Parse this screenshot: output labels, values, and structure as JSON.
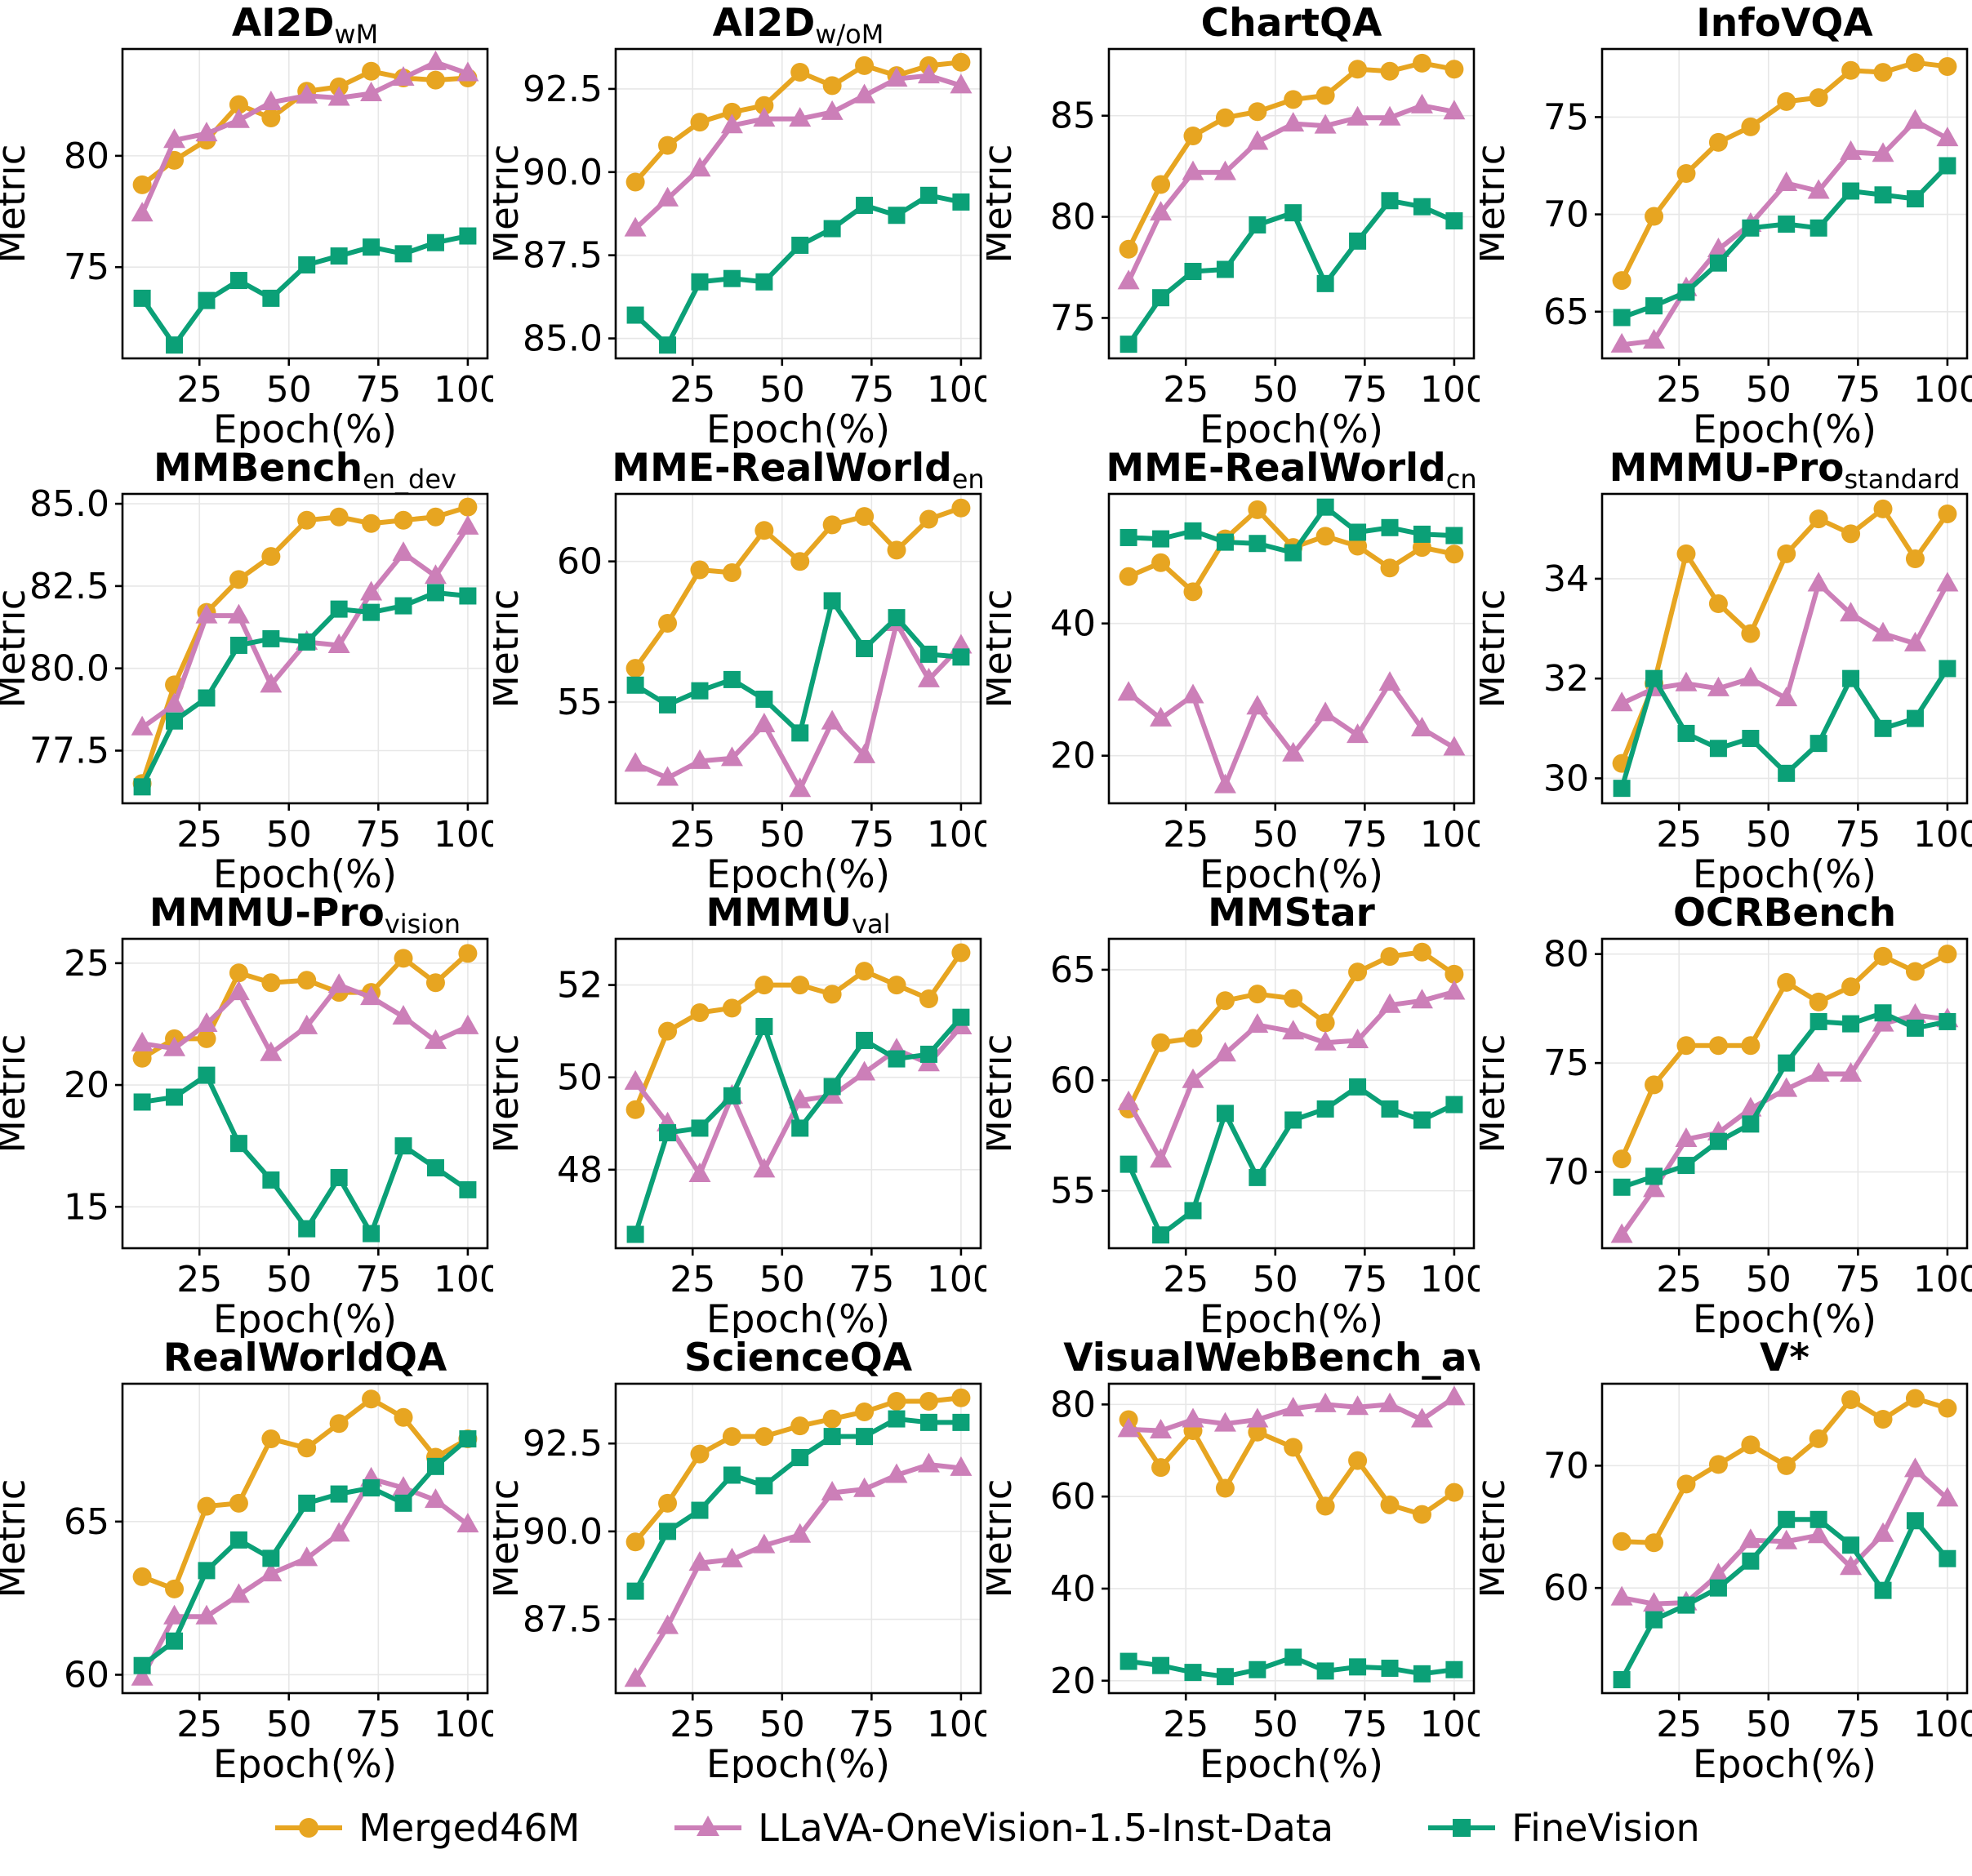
{
  "figure": {
    "background": "#ffffff",
    "grid_color": "#e7e7e7",
    "axis_color": "#000000"
  },
  "chart_data": {
    "type": "line",
    "x_label": "Epoch(%)",
    "y_label": "Metric",
    "x": [
      9,
      18,
      27,
      36,
      45,
      55,
      64,
      73,
      82,
      91,
      100
    ],
    "x_ticks": [
      25,
      50,
      75,
      100
    ],
    "xlim": [
      3.5,
      105.5
    ],
    "grid": true,
    "legend_position": "bottom",
    "series_meta": [
      {
        "name": "Merged46M",
        "color": "#E7A521",
        "marker": "circle"
      },
      {
        "name": "LLaVA-OneVision-1.5-Inst-Data",
        "color": "#CC7FB8",
        "marker": "triangle"
      },
      {
        "name": "FineVision",
        "color": "#0BA077",
        "marker": "square"
      }
    ],
    "subplots": [
      {
        "title": "AI2D",
        "title_sub": "wM",
        "ylim": [
          70.9,
          84.8
        ],
        "y_ticks": [
          "75",
          "80"
        ],
        "y_tick_values": [
          75,
          80
        ],
        "series": [
          [
            78.7,
            79.8,
            80.7,
            82.3,
            81.7,
            82.9,
            83.1,
            83.8,
            83.5,
            83.4,
            83.5
          ],
          [
            77.4,
            80.7,
            81.0,
            81.6,
            82.4,
            82.7,
            82.6,
            82.8,
            83.5,
            84.2,
            83.7
          ],
          [
            73.6,
            71.5,
            73.5,
            74.4,
            73.6,
            75.1,
            75.5,
            75.9,
            75.6,
            76.1,
            76.4
          ]
        ]
      },
      {
        "title": "AI2D",
        "title_sub": "w/oM",
        "ylim": [
          84.4,
          93.7
        ],
        "y_ticks": [
          "85.0",
          "87.5",
          "90.0",
          "92.5"
        ],
        "y_tick_values": [
          85.0,
          87.5,
          90.0,
          92.5
        ],
        "series": [
          [
            89.7,
            90.8,
            91.5,
            91.8,
            92.0,
            93.0,
            92.6,
            93.2,
            92.9,
            93.2,
            93.3
          ],
          [
            88.3,
            89.2,
            90.1,
            91.4,
            91.6,
            91.6,
            91.8,
            92.3,
            92.8,
            92.9,
            92.6
          ],
          [
            85.7,
            84.8,
            86.7,
            86.8,
            86.7,
            87.8,
            88.3,
            89.0,
            88.7,
            89.3,
            89.1
          ]
        ]
      },
      {
        "title": "ChartQA",
        "title_sub": "",
        "ylim": [
          73.0,
          88.3
        ],
        "y_ticks": [
          "75",
          "80",
          "85"
        ],
        "y_tick_values": [
          75,
          80,
          85
        ],
        "series": [
          [
            78.4,
            81.6,
            84.0,
            84.9,
            85.2,
            85.8,
            86.0,
            87.3,
            87.2,
            87.6,
            87.3
          ],
          [
            76.8,
            80.2,
            82.2,
            82.2,
            83.7,
            84.6,
            84.5,
            84.9,
            84.9,
            85.5,
            85.2
          ],
          [
            73.7,
            76.0,
            77.3,
            77.4,
            79.6,
            80.2,
            76.7,
            78.8,
            80.8,
            80.5,
            79.8
          ]
        ]
      },
      {
        "title": "InfoVQA",
        "title_sub": "",
        "ylim": [
          62.6,
          78.5
        ],
        "y_ticks": [
          "65",
          "70",
          "75"
        ],
        "y_tick_values": [
          65,
          70,
          75
        ],
        "series": [
          [
            66.6,
            69.9,
            72.1,
            73.7,
            74.5,
            75.8,
            76.0,
            77.4,
            77.3,
            77.8,
            77.6
          ],
          [
            63.3,
            63.5,
            66.2,
            68.2,
            69.5,
            71.6,
            71.2,
            73.2,
            73.1,
            74.8,
            73.9
          ],
          [
            64.7,
            65.3,
            66.0,
            67.5,
            69.3,
            69.5,
            69.3,
            71.2,
            71.0,
            70.8,
            72.5
          ]
        ]
      },
      {
        "title": "MMBench",
        "title_sub": "en_dev",
        "ylim": [
          75.9,
          85.3
        ],
        "y_ticks": [
          "77.5",
          "80.0",
          "82.5",
          "85.0"
        ],
        "y_tick_values": [
          77.5,
          80.0,
          82.5,
          85.0
        ],
        "series": [
          [
            76.5,
            79.5,
            81.7,
            82.7,
            83.4,
            84.5,
            84.6,
            84.4,
            84.5,
            84.6,
            84.9
          ],
          [
            78.2,
            78.9,
            81.6,
            81.6,
            79.5,
            80.8,
            80.7,
            82.3,
            83.5,
            82.8,
            84.3
          ],
          [
            76.4,
            78.4,
            79.1,
            80.7,
            80.9,
            80.8,
            81.8,
            81.7,
            81.9,
            82.3,
            82.2
          ]
        ]
      },
      {
        "title": "MME-RealWorld",
        "title_sub": "en",
        "ylim": [
          51.4,
          62.4
        ],
        "y_ticks": [
          "55",
          "60"
        ],
        "y_tick_values": [
          55,
          60
        ],
        "series": [
          [
            56.2,
            57.8,
            59.7,
            59.6,
            61.1,
            60.0,
            61.3,
            61.6,
            60.4,
            61.5,
            61.9
          ],
          [
            52.8,
            52.3,
            52.9,
            53.0,
            54.2,
            51.9,
            54.3,
            53.1,
            57.8,
            55.8,
            57.0
          ],
          [
            55.6,
            54.9,
            55.4,
            55.8,
            55.1,
            53.9,
            58.6,
            56.9,
            58.0,
            56.7,
            56.6
          ]
        ]
      },
      {
        "title": "MME-RealWorld",
        "title_sub": "cn",
        "ylim": [
          12.8,
          59.6
        ],
        "y_ticks": [
          "20",
          "40"
        ],
        "y_tick_values": [
          20,
          40
        ],
        "series": [
          [
            47.1,
            49.2,
            44.8,
            52.8,
            57.2,
            51.5,
            53.2,
            51.7,
            48.4,
            51.5,
            50.5
          ],
          [
            29.5,
            25.6,
            29.1,
            15.5,
            27.4,
            20.3,
            26.4,
            23.1,
            31.0,
            24.1,
            21.2
          ],
          [
            53.0,
            52.8,
            54.0,
            52.3,
            52.1,
            50.7,
            57.6,
            53.8,
            54.5,
            53.5,
            53.3
          ]
        ]
      },
      {
        "title": "MMMU-Pro",
        "title_sub": "standard",
        "ylim": [
          29.5,
          35.7
        ],
        "y_ticks": [
          "30",
          "32",
          "34"
        ],
        "y_tick_values": [
          30,
          32,
          34
        ],
        "series": [
          [
            30.3,
            31.9,
            34.5,
            33.5,
            32.9,
            34.5,
            35.2,
            34.9,
            35.4,
            34.4,
            35.3
          ],
          [
            31.5,
            31.8,
            31.9,
            31.8,
            32.0,
            31.6,
            33.9,
            33.3,
            32.9,
            32.7,
            33.9
          ],
          [
            29.8,
            32.0,
            30.9,
            30.6,
            30.8,
            30.1,
            30.7,
            32.0,
            31.0,
            31.2,
            32.2
          ]
        ]
      },
      {
        "title": "MMMU-Pro",
        "title_sub": "vision",
        "ylim": [
          13.3,
          26.0
        ],
        "y_ticks": [
          "15",
          "20",
          "25"
        ],
        "y_tick_values": [
          15,
          20,
          25
        ],
        "series": [
          [
            21.1,
            21.9,
            21.9,
            24.6,
            24.2,
            24.3,
            23.8,
            23.8,
            25.2,
            24.2,
            25.4
          ],
          [
            21.7,
            21.5,
            22.5,
            23.8,
            21.3,
            22.4,
            24.1,
            23.6,
            22.8,
            21.8,
            22.4
          ],
          [
            19.3,
            19.5,
            20.4,
            17.6,
            16.1,
            14.1,
            16.2,
            13.9,
            17.5,
            16.6,
            15.7
          ]
        ]
      },
      {
        "title": "MMMU",
        "title_sub": "val",
        "ylim": [
          46.3,
          53.0
        ],
        "y_ticks": [
          "48",
          "50",
          "52"
        ],
        "y_tick_values": [
          48,
          50,
          52
        ],
        "series": [
          [
            49.3,
            51.0,
            51.4,
            51.5,
            52.0,
            52.0,
            51.8,
            52.3,
            52.0,
            51.7,
            52.7
          ],
          [
            49.9,
            49.0,
            47.9,
            49.6,
            48.0,
            49.5,
            49.6,
            50.1,
            50.6,
            50.3,
            51.1
          ],
          [
            46.6,
            48.8,
            48.9,
            49.6,
            51.1,
            48.9,
            49.8,
            50.8,
            50.4,
            50.5,
            51.3
          ]
        ]
      },
      {
        "title": "MMStar",
        "title_sub": "",
        "ylim": [
          52.4,
          66.4
        ],
        "y_ticks": [
          "55",
          "60",
          "65"
        ],
        "y_tick_values": [
          55,
          60,
          65
        ],
        "series": [
          [
            58.7,
            61.7,
            61.9,
            63.6,
            63.9,
            63.7,
            62.6,
            64.9,
            65.6,
            65.8,
            64.8
          ],
          [
            59.0,
            56.4,
            60.0,
            61.2,
            62.5,
            62.2,
            61.7,
            61.8,
            63.4,
            63.6,
            64.0
          ],
          [
            56.2,
            53.0,
            54.1,
            58.5,
            55.6,
            58.2,
            58.7,
            59.7,
            58.7,
            58.2,
            58.9
          ]
        ]
      },
      {
        "title": "OCRBench",
        "title_sub": "",
        "ylim": [
          66.5,
          80.7
        ],
        "y_ticks": [
          "70",
          "75",
          "80"
        ],
        "y_tick_values": [
          70,
          75,
          80
        ],
        "series": [
          [
            70.6,
            74.0,
            75.8,
            75.8,
            75.8,
            78.7,
            77.8,
            78.5,
            79.9,
            79.2,
            80.0
          ],
          [
            67.1,
            69.2,
            71.5,
            71.8,
            72.9,
            73.8,
            74.5,
            74.5,
            76.8,
            77.2,
            77.0
          ],
          [
            69.3,
            69.8,
            70.3,
            71.4,
            72.2,
            75.0,
            76.9,
            76.8,
            77.3,
            76.6,
            76.9
          ]
        ]
      },
      {
        "title": "RealWorldQA",
        "title_sub": "",
        "ylim": [
          59.4,
          69.5
        ],
        "y_ticks": [
          "60",
          "65"
        ],
        "y_tick_values": [
          60,
          65
        ],
        "series": [
          [
            63.2,
            62.8,
            65.5,
            65.6,
            67.7,
            67.4,
            68.2,
            69.0,
            68.4,
            67.1,
            67.7
          ],
          [
            59.9,
            61.9,
            61.9,
            62.6,
            63.3,
            63.8,
            64.6,
            66.4,
            66.1,
            65.7,
            64.9
          ],
          [
            60.3,
            61.1,
            63.4,
            64.4,
            63.8,
            65.6,
            65.9,
            66.1,
            65.6,
            66.8,
            67.7
          ]
        ]
      },
      {
        "title": "ScienceQA",
        "title_sub": "",
        "ylim": [
          85.4,
          94.2
        ],
        "y_ticks": [
          "87.5",
          "90.0",
          "92.5"
        ],
        "y_tick_values": [
          87.5,
          90.0,
          92.5
        ],
        "series": [
          [
            89.7,
            90.8,
            92.2,
            92.7,
            92.7,
            93.0,
            93.2,
            93.4,
            93.7,
            93.7,
            93.8
          ],
          [
            85.8,
            87.3,
            89.1,
            89.2,
            89.6,
            89.9,
            91.1,
            91.2,
            91.6,
            91.9,
            91.8
          ],
          [
            88.3,
            90.0,
            90.6,
            91.6,
            91.3,
            92.1,
            92.7,
            92.7,
            93.2,
            93.1,
            93.1
          ]
        ]
      },
      {
        "title": "VisualWebBench_avg",
        "title_sub": "",
        "ylim": [
          17.3,
          84.5
        ],
        "y_ticks": [
          "20",
          "40",
          "60",
          "80"
        ],
        "y_tick_values": [
          20,
          40,
          60,
          80
        ],
        "series": [
          [
            76.7,
            66.3,
            74.3,
            61.8,
            74.0,
            70.7,
            57.9,
            67.8,
            58.2,
            56.1,
            60.9
          ],
          [
            74.6,
            74.3,
            76.7,
            75.8,
            76.7,
            79.1,
            80.0,
            79.4,
            80.0,
            76.7,
            81.5
          ],
          [
            24.2,
            23.3,
            21.8,
            20.9,
            22.4,
            25.1,
            22.1,
            23.0,
            22.7,
            21.5,
            22.4
          ]
        ]
      },
      {
        "title": "V*",
        "title_sub": "",
        "ylim": [
          51.4,
          76.7
        ],
        "y_ticks": [
          "60",
          "70"
        ],
        "y_tick_values": [
          60,
          70
        ],
        "series": [
          [
            63.8,
            63.7,
            68.5,
            70.1,
            71.7,
            70.0,
            72.2,
            75.4,
            73.8,
            75.5,
            74.7
          ],
          [
            59.2,
            58.7,
            58.8,
            61.1,
            63.9,
            63.8,
            64.3,
            61.7,
            64.4,
            69.7,
            67.3
          ],
          [
            52.5,
            57.4,
            58.6,
            60.0,
            62.2,
            65.6,
            65.6,
            63.5,
            59.8,
            65.5,
            62.4
          ]
        ]
      }
    ]
  }
}
